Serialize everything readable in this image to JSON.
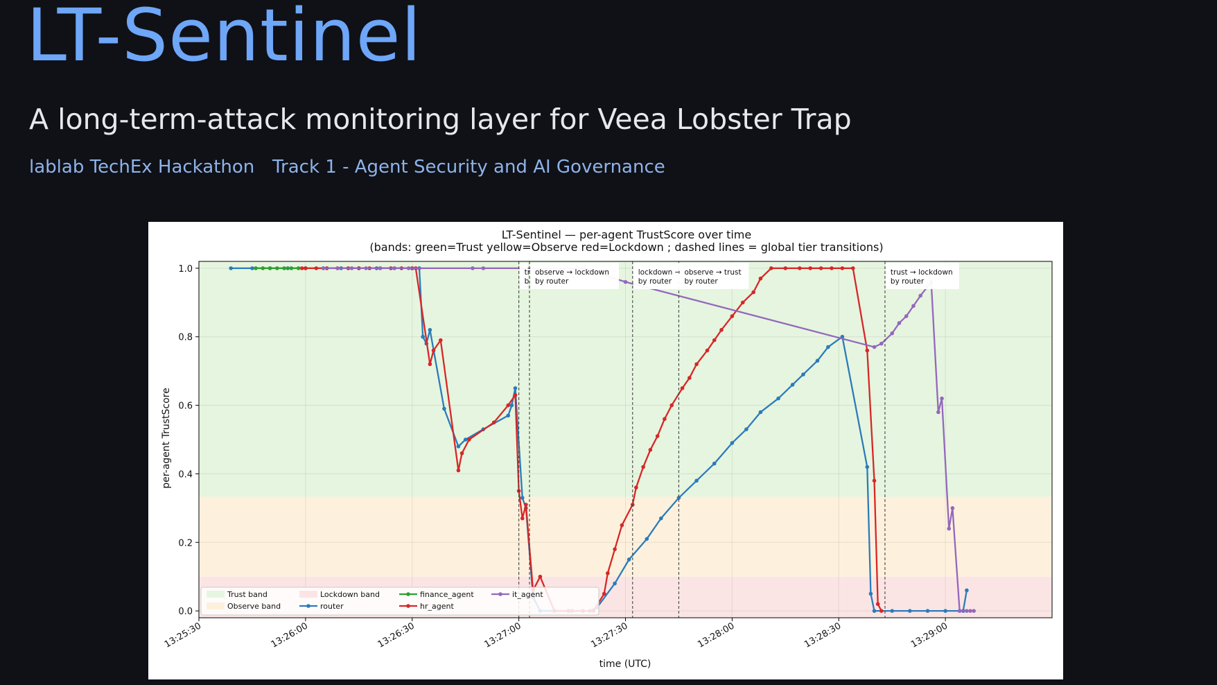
{
  "header": {
    "title": "LT-Sentinel",
    "subtitle": "A long-term-attack monitoring layer for Veea Lobster Trap",
    "tags": [
      "lablab TechEx Hackathon",
      "Track 1 - Agent Security and AI Governance"
    ]
  },
  "chart_data": {
    "type": "line",
    "title": "LT-Sentinel — per-agent TrustScore over time",
    "subtitle": "(bands: green=Trust  yellow=Observe  red=Lockdown ; dashed lines = global tier transitions)",
    "xlabel": "time (UTC)",
    "ylabel": "per-agent TrustScore",
    "xlim": [
      "13:25:30",
      "13:29:30"
    ],
    "ylim": [
      -0.02,
      1.02
    ],
    "xticks": [
      "13:25:30",
      "13:26:00",
      "13:26:30",
      "13:27:00",
      "13:27:30",
      "13:28:00",
      "13:28:30",
      "13:29:00"
    ],
    "yticks": [
      "0.0",
      "0.2",
      "0.4",
      "0.6",
      "0.8",
      "1.0"
    ],
    "grid": true,
    "legend_position": "lower-left",
    "bands": [
      {
        "name": "Trust band",
        "from": 0.333,
        "to": 1.02,
        "color": "#e6f5df"
      },
      {
        "name": "Observe band",
        "from": 0.1,
        "to": 0.333,
        "color": "#fdf1dd"
      },
      {
        "name": "Lockdown band",
        "from": -0.02,
        "to": 0.1,
        "color": "#fbe5e4"
      }
    ],
    "legend": [
      "Trust band",
      "Observe band",
      "Lockdown band",
      "router",
      "finance_agent",
      "hr_agent",
      "it_agent"
    ],
    "transitions": [
      {
        "x": "13:27:00",
        "label1": "tr",
        "label2": "b"
      },
      {
        "x": "13:27:03",
        "label1": "observe → lockdown",
        "label2": "by router"
      },
      {
        "x": "13:27:32",
        "label1": "lockdown →",
        "label2": "by router"
      },
      {
        "x": "13:27:45",
        "label1": "observe → trust",
        "label2": "by router"
      },
      {
        "x": "13:28:43",
        "label1": "trust → lockdown",
        "label2": "by router"
      }
    ],
    "series": [
      {
        "name": "router",
        "color": "#2b7bba",
        "points": [
          [
            "13:25:39",
            1.0
          ],
          [
            "13:25:45",
            1.0
          ],
          [
            "13:25:50",
            1.0
          ],
          [
            "13:25:55",
            1.0
          ],
          [
            "13:26:00",
            1.0
          ],
          [
            "13:26:05",
            1.0
          ],
          [
            "13:26:10",
            1.0
          ],
          [
            "13:26:15",
            1.0
          ],
          [
            "13:26:20",
            1.0
          ],
          [
            "13:26:25",
            1.0
          ],
          [
            "13:26:30",
            1.0
          ],
          [
            "13:26:32",
            1.0
          ],
          [
            "13:26:33",
            0.8
          ],
          [
            "13:26:34",
            0.78
          ],
          [
            "13:26:35",
            0.82
          ],
          [
            "13:26:39",
            0.59
          ],
          [
            "13:26:43",
            0.48
          ],
          [
            "13:26:45",
            0.5
          ],
          [
            "13:26:50",
            0.53
          ],
          [
            "13:26:57",
            0.57
          ],
          [
            "13:26:58",
            0.6
          ],
          [
            "13:26:59",
            0.65
          ],
          [
            "13:27:01",
            0.33
          ],
          [
            "13:27:02",
            0.3
          ],
          [
            "13:27:04",
            0.04
          ],
          [
            "13:27:06",
            0.0
          ],
          [
            "13:27:15",
            0.0
          ],
          [
            "13:27:20",
            0.0
          ],
          [
            "13:27:22",
            0.01
          ],
          [
            "13:27:27",
            0.08
          ],
          [
            "13:27:31",
            0.15
          ],
          [
            "13:27:36",
            0.21
          ],
          [
            "13:27:40",
            0.27
          ],
          [
            "13:27:45",
            0.33
          ],
          [
            "13:27:50",
            0.38
          ],
          [
            "13:27:55",
            0.43
          ],
          [
            "13:28:00",
            0.49
          ],
          [
            "13:28:04",
            0.53
          ],
          [
            "13:28:08",
            0.58
          ],
          [
            "13:28:13",
            0.62
          ],
          [
            "13:28:17",
            0.66
          ],
          [
            "13:28:20",
            0.69
          ],
          [
            "13:28:24",
            0.73
          ],
          [
            "13:28:27",
            0.77
          ],
          [
            "13:28:31",
            0.8
          ],
          [
            "13:28:38",
            0.42
          ],
          [
            "13:28:39",
            0.05
          ],
          [
            "13:28:40",
            0.0
          ],
          [
            "13:28:45",
            0.0
          ],
          [
            "13:28:50",
            0.0
          ],
          [
            "13:28:55",
            0.0
          ],
          [
            "13:29:00",
            0.0
          ],
          [
            "13:29:04",
            0.0
          ],
          [
            "13:29:05",
            0.0
          ],
          [
            "13:29:06",
            0.06
          ]
        ]
      },
      {
        "name": "finance_agent",
        "color": "#2ca02c",
        "points": [
          [
            "13:25:46",
            1.0
          ],
          [
            "13:25:48",
            1.0
          ],
          [
            "13:25:50",
            1.0
          ],
          [
            "13:25:52",
            1.0
          ],
          [
            "13:25:54",
            1.0
          ],
          [
            "13:25:56",
            1.0
          ],
          [
            "13:25:58",
            1.0
          ],
          [
            "13:26:00",
            1.0
          ]
        ]
      },
      {
        "name": "hr_agent",
        "color": "#d62728",
        "points": [
          [
            "13:25:59",
            1.0
          ],
          [
            "13:26:00",
            1.0
          ],
          [
            "13:26:03",
            1.0
          ],
          [
            "13:26:06",
            1.0
          ],
          [
            "13:26:09",
            1.0
          ],
          [
            "13:26:12",
            1.0
          ],
          [
            "13:26:15",
            1.0
          ],
          [
            "13:26:18",
            1.0
          ],
          [
            "13:26:21",
            1.0
          ],
          [
            "13:26:24",
            1.0
          ],
          [
            "13:26:27",
            1.0
          ],
          [
            "13:26:30",
            1.0
          ],
          [
            "13:26:31",
            1.0
          ],
          [
            "13:26:35",
            0.72
          ],
          [
            "13:26:36",
            0.76
          ],
          [
            "13:26:38",
            0.79
          ],
          [
            "13:26:43",
            0.41
          ],
          [
            "13:26:44",
            0.46
          ],
          [
            "13:26:46",
            0.5
          ],
          [
            "13:26:53",
            0.55
          ],
          [
            "13:26:57",
            0.6
          ],
          [
            "13:26:59",
            0.63
          ],
          [
            "13:27:00",
            0.35
          ],
          [
            "13:27:01",
            0.27
          ],
          [
            "13:27:02",
            0.31
          ],
          [
            "13:27:04",
            0.06
          ],
          [
            "13:27:06",
            0.1
          ],
          [
            "13:27:10",
            0.0
          ],
          [
            "13:27:14",
            0.0
          ],
          [
            "13:27:18",
            0.0
          ],
          [
            "13:27:21",
            0.0
          ],
          [
            "13:27:24",
            0.05
          ],
          [
            "13:27:25",
            0.11
          ],
          [
            "13:27:27",
            0.18
          ],
          [
            "13:27:29",
            0.25
          ],
          [
            "13:27:32",
            0.31
          ],
          [
            "13:27:33",
            0.36
          ],
          [
            "13:27:35",
            0.42
          ],
          [
            "13:27:37",
            0.47
          ],
          [
            "13:27:39",
            0.51
          ],
          [
            "13:27:41",
            0.56
          ],
          [
            "13:27:43",
            0.6
          ],
          [
            "13:27:46",
            0.65
          ],
          [
            "13:27:48",
            0.68
          ],
          [
            "13:27:50",
            0.72
          ],
          [
            "13:27:53",
            0.76
          ],
          [
            "13:27:55",
            0.79
          ],
          [
            "13:27:57",
            0.82
          ],
          [
            "13:28:00",
            0.86
          ],
          [
            "13:28:03",
            0.9
          ],
          [
            "13:28:06",
            0.93
          ],
          [
            "13:28:08",
            0.97
          ],
          [
            "13:28:11",
            1.0
          ],
          [
            "13:28:15",
            1.0
          ],
          [
            "13:28:19",
            1.0
          ],
          [
            "13:28:22",
            1.0
          ],
          [
            "13:28:25",
            1.0
          ],
          [
            "13:28:28",
            1.0
          ],
          [
            "13:28:31",
            1.0
          ],
          [
            "13:28:34",
            1.0
          ],
          [
            "13:28:38",
            0.76
          ],
          [
            "13:28:40",
            0.38
          ],
          [
            "13:28:41",
            0.02
          ],
          [
            "13:28:42",
            0.0
          ]
        ]
      },
      {
        "name": "it_agent",
        "color": "#9467bd",
        "points": [
          [
            "13:26:05",
            1.0
          ],
          [
            "13:26:09",
            1.0
          ],
          [
            "13:26:13",
            1.0
          ],
          [
            "13:26:17",
            1.0
          ],
          [
            "13:26:21",
            1.0
          ],
          [
            "13:26:25",
            1.0
          ],
          [
            "13:26:29",
            1.0
          ],
          [
            "13:26:47",
            1.0
          ],
          [
            "13:26:50",
            1.0
          ],
          [
            "13:27:18",
            1.0
          ],
          [
            "13:27:30",
            0.96
          ],
          [
            "13:28:40",
            0.77
          ],
          [
            "13:28:42",
            0.78
          ],
          [
            "13:28:45",
            0.81
          ],
          [
            "13:28:47",
            0.84
          ],
          [
            "13:28:49",
            0.86
          ],
          [
            "13:28:51",
            0.89
          ],
          [
            "13:28:53",
            0.92
          ],
          [
            "13:28:56",
            0.96
          ],
          [
            "13:28:58",
            0.58
          ],
          [
            "13:28:59",
            0.62
          ],
          [
            "13:29:01",
            0.24
          ],
          [
            "13:29:02",
            0.3
          ],
          [
            "13:29:04",
            0.0
          ],
          [
            "13:29:06",
            0.0
          ],
          [
            "13:29:07",
            0.0
          ],
          [
            "13:29:08",
            0.0
          ]
        ]
      }
    ]
  }
}
